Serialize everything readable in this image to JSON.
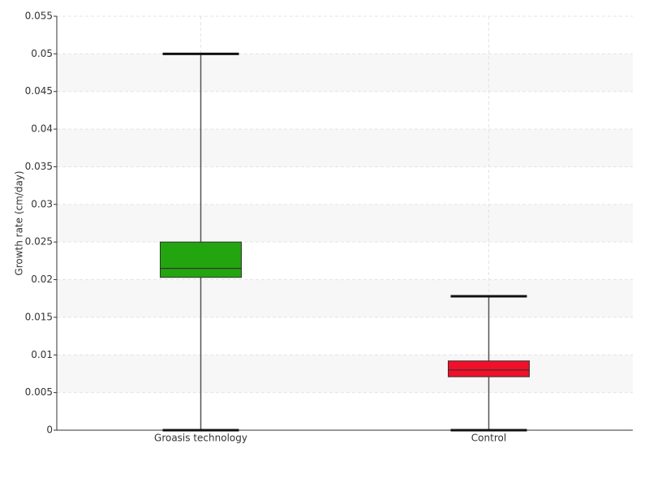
{
  "chart_data": {
    "type": "box",
    "y_label": "Growth rate (cm/day)",
    "categories": [
      "Groasis technology",
      "Control"
    ],
    "boxes": [
      {
        "min": 0,
        "q1": 0.0203,
        "median": 0.0215,
        "q3": 0.025,
        "max": 0.05,
        "color": "#22a50e"
      },
      {
        "min": 0,
        "q1": 0.0071,
        "median": 0.008,
        "q3": 0.0092,
        "max": 0.0178,
        "color": "#f0102a"
      }
    ],
    "ylim": [
      0,
      0.055
    ],
    "yticks": [
      0,
      0.005,
      0.01,
      0.015,
      0.02,
      0.025,
      0.03,
      0.035,
      0.04,
      0.045,
      0.05,
      0.055
    ],
    "grid": true
  }
}
